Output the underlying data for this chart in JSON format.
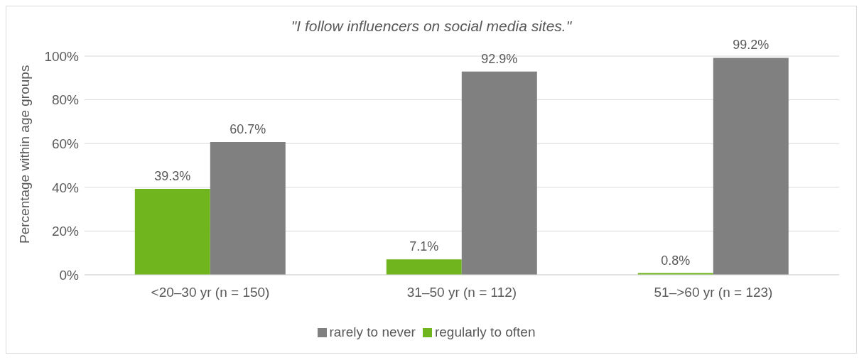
{
  "chart_data": {
    "type": "bar",
    "title": "\"I follow influencers on social media sites.\"",
    "ylabel": "Percentage within age groups",
    "categories": [
      "<20–30 yr (n = 150)",
      "31–50 yr (n = 112)",
      "51–>60 yr (n = 123)"
    ],
    "series": [
      {
        "name": "regularly to often",
        "color": "#70b51e",
        "values": [
          39.3,
          7.1,
          0.8
        ],
        "value_labels": [
          "39.3%",
          "7.1%",
          "0.8%"
        ]
      },
      {
        "name": "rarely to never",
        "color": "#808080",
        "values": [
          60.7,
          92.9,
          99.2
        ],
        "value_labels": [
          "60.7%",
          "92.9%",
          "99.2%"
        ]
      }
    ],
    "ylim": [
      0,
      100
    ],
    "yticks": [
      {
        "value": 0,
        "label": "0%"
      },
      {
        "value": 20,
        "label": "20%"
      },
      {
        "value": 40,
        "label": "40%"
      },
      {
        "value": 60,
        "label": "60%"
      },
      {
        "value": 80,
        "label": "80%"
      },
      {
        "value": 100,
        "label": "100%"
      }
    ],
    "grid": "y",
    "legend": "bottom"
  }
}
